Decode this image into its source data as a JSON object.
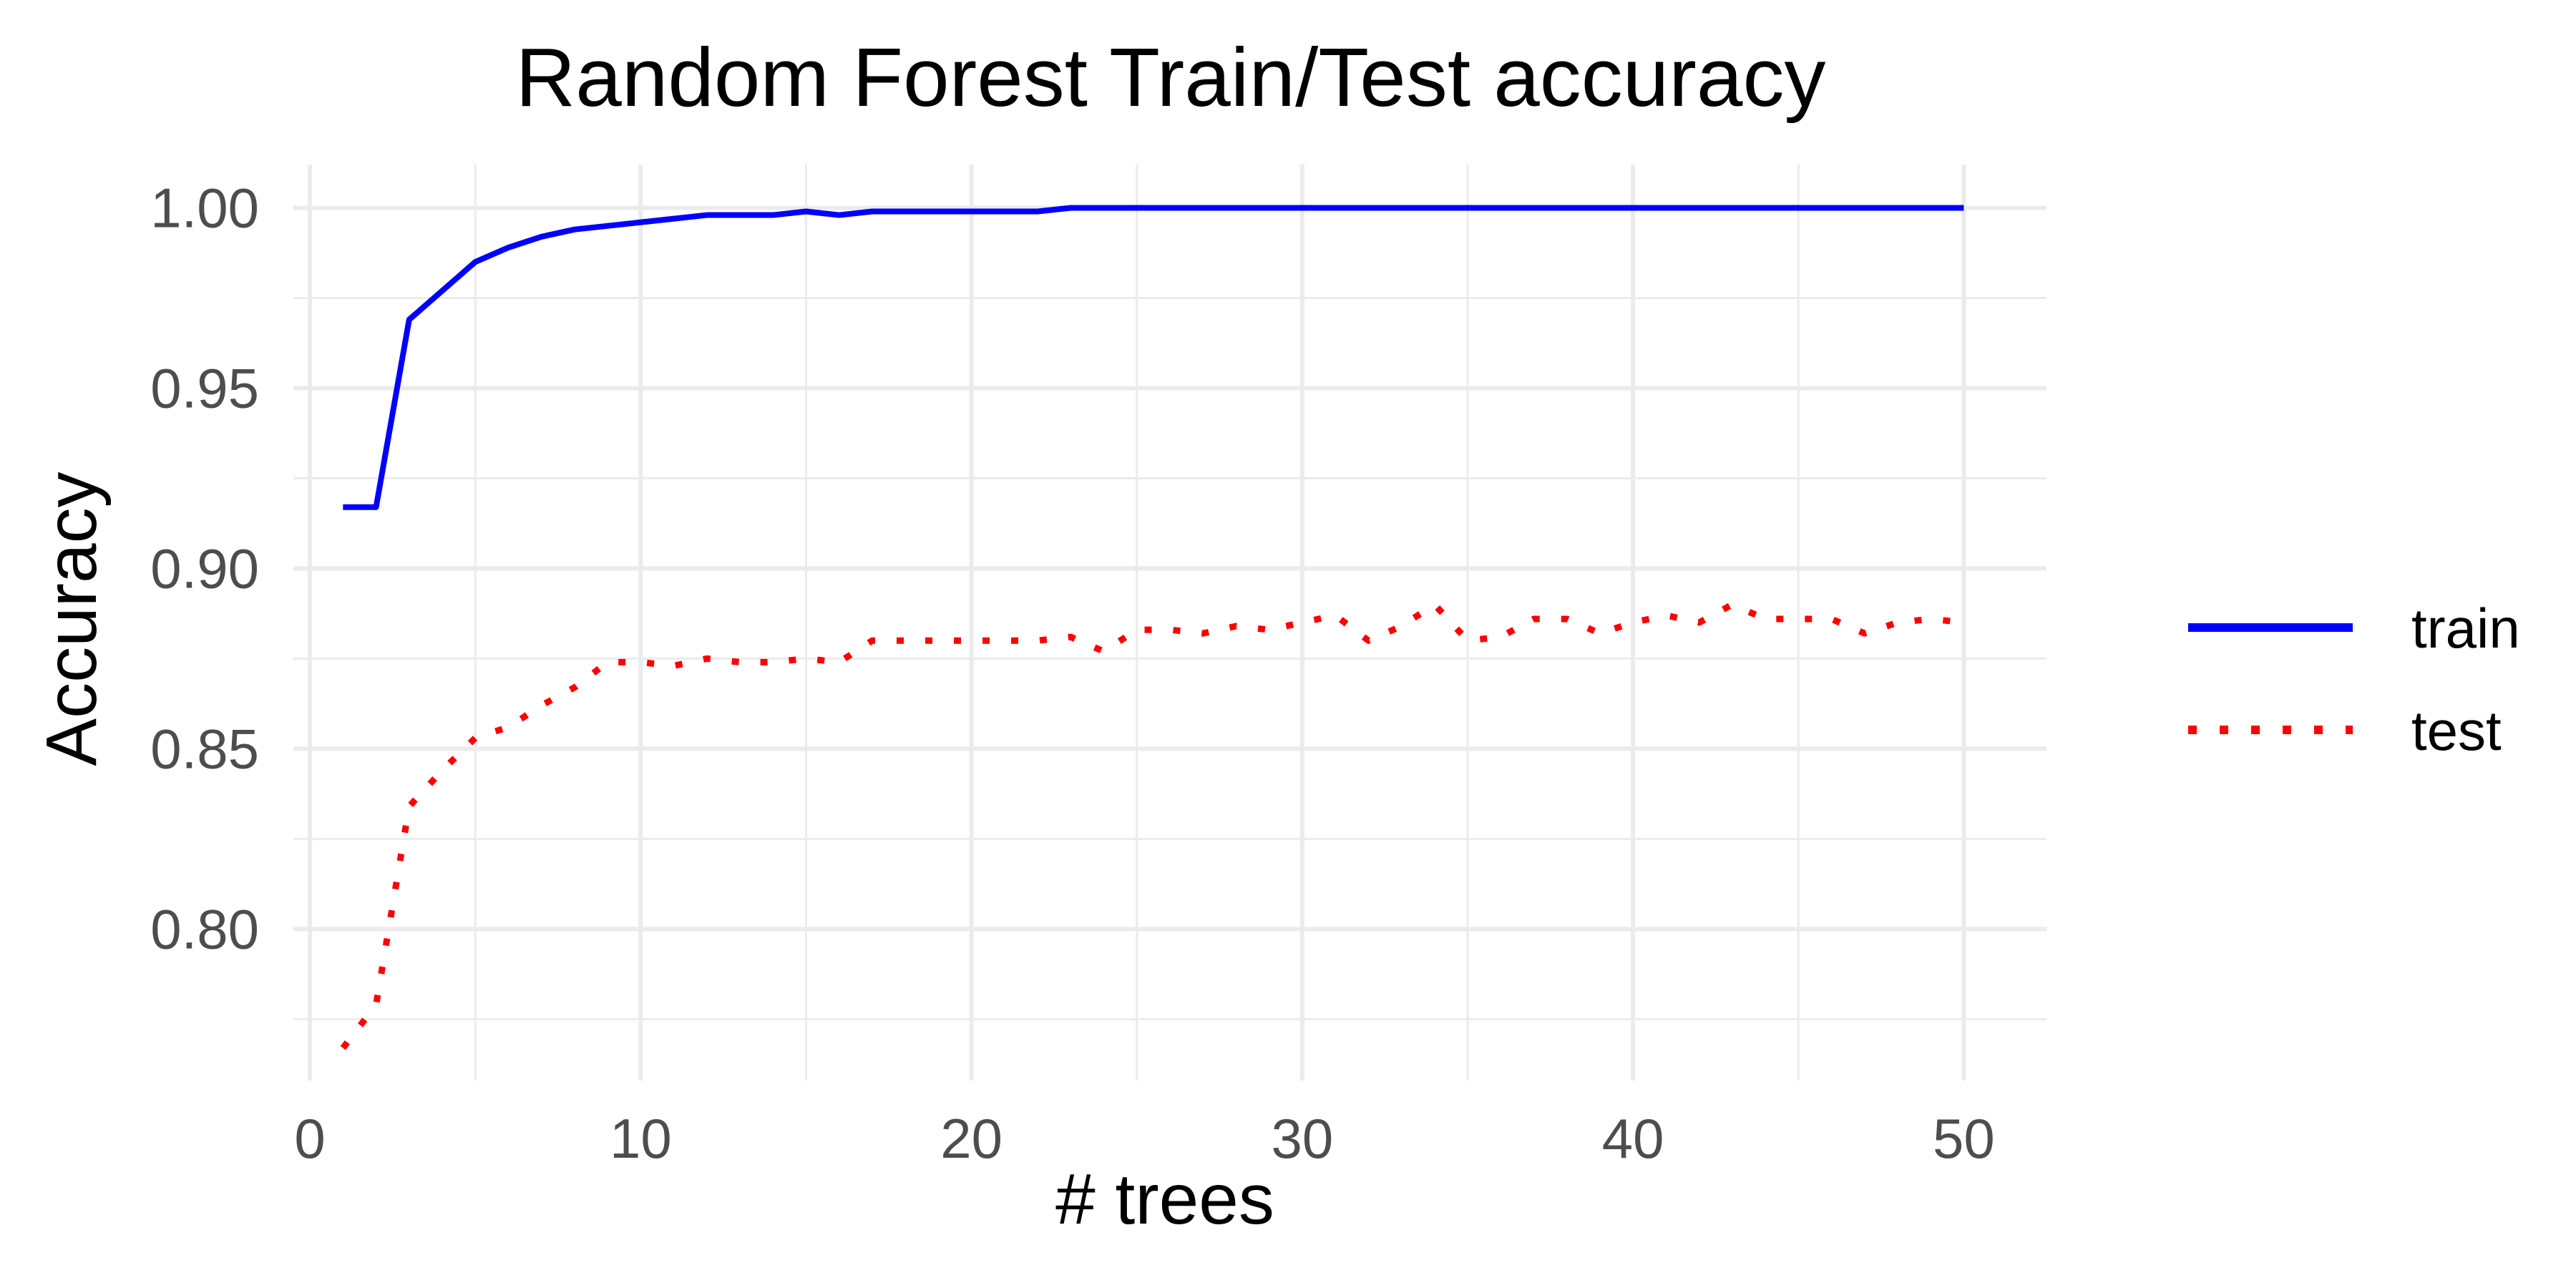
{
  "chart_data": {
    "type": "line",
    "title": "Random Forest Train/Test accuracy",
    "xlabel": "# trees",
    "ylabel": "Accuracy",
    "xlim": [
      -0.5,
      52.5
    ],
    "ylim": [
      0.758,
      1.012
    ],
    "x_ticks": [
      0,
      10,
      20,
      30,
      40,
      50
    ],
    "x_tick_labels": [
      "0",
      "10",
      "20",
      "30",
      "40",
      "50"
    ],
    "y_ticks": [
      0.8,
      0.85,
      0.9,
      0.95,
      1.0
    ],
    "y_tick_labels": [
      "0.80",
      "0.85",
      "0.90",
      "0.95",
      "1.00"
    ],
    "grid": true,
    "legend_position": "right",
    "x": [
      1,
      2,
      3,
      4,
      5,
      6,
      7,
      8,
      9,
      10,
      11,
      12,
      13,
      14,
      15,
      16,
      17,
      18,
      19,
      20,
      21,
      22,
      23,
      24,
      25,
      26,
      27,
      28,
      29,
      30,
      31,
      32,
      33,
      34,
      35,
      36,
      37,
      38,
      39,
      40,
      41,
      42,
      43,
      44,
      45,
      46,
      47,
      48,
      49,
      50
    ],
    "series": [
      {
        "name": "train",
        "color": "#0000ff",
        "dash": "solid",
        "values": [
          0.917,
          0.917,
          0.969,
          0.977,
          0.985,
          0.989,
          0.992,
          0.994,
          0.995,
          0.996,
          0.997,
          0.998,
          0.998,
          0.998,
          0.999,
          0.998,
          0.999,
          0.999,
          0.999,
          0.999,
          0.999,
          0.999,
          1.0,
          1.0,
          1.0,
          1.0,
          1.0,
          1.0,
          1.0,
          1.0,
          1.0,
          1.0,
          1.0,
          1.0,
          1.0,
          1.0,
          1.0,
          1.0,
          1.0,
          1.0,
          1.0,
          1.0,
          1.0,
          1.0,
          1.0,
          1.0,
          1.0,
          1.0,
          1.0,
          1.0
        ]
      },
      {
        "name": "test",
        "color": "#ff0000",
        "dash": "dotted",
        "values": [
          0.767,
          0.779,
          0.834,
          0.844,
          0.853,
          0.856,
          0.862,
          0.867,
          0.874,
          0.874,
          0.873,
          0.875,
          0.874,
          0.874,
          0.875,
          0.874,
          0.88,
          0.88,
          0.88,
          0.88,
          0.88,
          0.88,
          0.881,
          0.877,
          0.883,
          0.883,
          0.882,
          0.884,
          0.883,
          0.885,
          0.887,
          0.88,
          0.884,
          0.89,
          0.88,
          0.881,
          0.886,
          0.886,
          0.882,
          0.885,
          0.887,
          0.885,
          0.89,
          0.886,
          0.886,
          0.886,
          0.882,
          0.885,
          0.886,
          0.885
        ]
      }
    ]
  }
}
